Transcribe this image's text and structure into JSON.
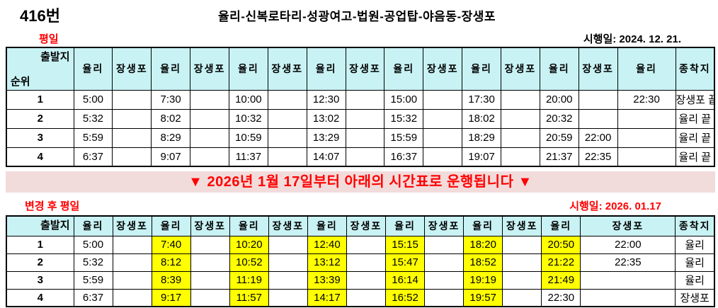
{
  "page": {
    "route_number": "416번",
    "route_path": "율리-신복로타리-성광여고-법원-공업탑-야음동-장생포"
  },
  "section1": {
    "label": "평일",
    "effective_date": "시행일: 2024. 12. 21."
  },
  "banner": {
    "text": "▼ 2026년 1월 17일부터 아래의 시간표로 운행됩니다 ▼"
  },
  "section2": {
    "label": "변경 후 평일",
    "effective_date": "시행일: 2026. 01.17"
  },
  "colors": {
    "header_bg": "#c9f2f4",
    "banner_bg": "#f2dcdb",
    "accent_red": "#ff0000",
    "highlight_yellow": "#ffff00"
  },
  "table1": {
    "corner_top": "출발지",
    "corner_bottom": "순위",
    "columns": [
      "율리",
      "장생포",
      "율리",
      "장생포",
      "율리",
      "장생포",
      "율리",
      "장생포",
      "율리",
      "장생포",
      "율리",
      "장생포",
      "율리",
      "장생포",
      "율리",
      "종착지"
    ],
    "rows": [
      {
        "no": "1",
        "cells": [
          "5:00",
          "",
          "7:30",
          "",
          "10:00",
          "",
          "12:30",
          "",
          "15:00",
          "",
          "17:30",
          "",
          "20:00",
          "",
          "22:30"
        ],
        "highlights": [],
        "dest": "장생포 끝"
      },
      {
        "no": "2",
        "cells": [
          "5:32",
          "",
          "8:02",
          "",
          "10:32",
          "",
          "13:02",
          "",
          "15:32",
          "",
          "18:02",
          "",
          "20:32",
          "",
          ""
        ],
        "highlights": [],
        "dest": "율리 끝"
      },
      {
        "no": "3",
        "cells": [
          "5:59",
          "",
          "8:29",
          "",
          "10:59",
          "",
          "13:29",
          "",
          "15:59",
          "",
          "18:29",
          "",
          "20:59",
          "22:00",
          ""
        ],
        "highlights": [],
        "dest": "율리 끝"
      },
      {
        "no": "4",
        "cells": [
          "6:37",
          "",
          "9:07",
          "",
          "11:37",
          "",
          "14:07",
          "",
          "16:37",
          "",
          "19:07",
          "",
          "21:37",
          "22:35",
          ""
        ],
        "highlights": [],
        "dest": "율리 끝"
      }
    ]
  },
  "table2": {
    "corner_top": "출발지",
    "corner_bottom": "",
    "columns": [
      "율리",
      "장생포",
      "율리",
      "장생포",
      "율리",
      "장생포",
      "율리",
      "장생포",
      "율리",
      "장생포",
      "율리",
      "장생포",
      "율리",
      "장생포",
      "종착지"
    ],
    "rows": [
      {
        "no": "1",
        "cells": [
          "5:00",
          "",
          "7:40",
          "",
          "10:20",
          "",
          "12:40",
          "",
          "15:15",
          "",
          "18:20",
          "",
          "20:50",
          "22:00"
        ],
        "highlights": [
          2,
          4,
          6,
          8,
          10,
          12
        ],
        "dest": "율리"
      },
      {
        "no": "2",
        "cells": [
          "5:32",
          "",
          "8:12",
          "",
          "10:52",
          "",
          "13:12",
          "",
          "15:47",
          "",
          "18:52",
          "",
          "21:22",
          "22:35"
        ],
        "highlights": [
          2,
          4,
          6,
          8,
          10,
          12
        ],
        "dest": "율리"
      },
      {
        "no": "3",
        "cells": [
          "5:59",
          "",
          "8:39",
          "",
          "11:19",
          "",
          "13:39",
          "",
          "16:14",
          "",
          "19:19",
          "",
          "21:49",
          ""
        ],
        "highlights": [
          2,
          4,
          6,
          8,
          10,
          12
        ],
        "dest": "율리"
      },
      {
        "no": "4",
        "cells": [
          "6:37",
          "",
          "9:17",
          "",
          "11:57",
          "",
          "14:17",
          "",
          "16:52",
          "",
          "19:57",
          "",
          "22:30",
          ""
        ],
        "highlights": [
          2,
          4,
          6,
          8,
          10
        ],
        "dest": "장생포"
      }
    ]
  }
}
